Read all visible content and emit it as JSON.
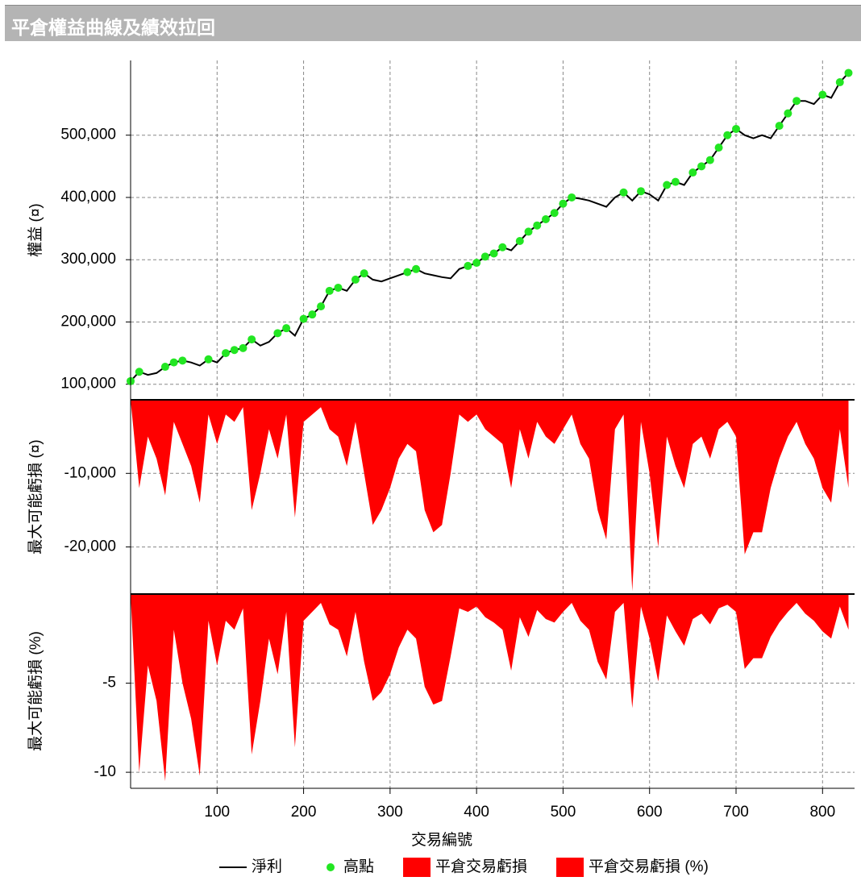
{
  "chart_data": {
    "title": "平倉權益曲線及績效拉回",
    "xlabel": "交易編號",
    "x": [
      0,
      10,
      20,
      30,
      40,
      50,
      60,
      70,
      80,
      90,
      100,
      110,
      120,
      130,
      140,
      150,
      160,
      170,
      180,
      190,
      200,
      210,
      220,
      230,
      240,
      250,
      260,
      270,
      280,
      290,
      300,
      310,
      320,
      330,
      340,
      350,
      360,
      370,
      380,
      390,
      400,
      410,
      420,
      430,
      440,
      450,
      460,
      470,
      480,
      490,
      500,
      510,
      520,
      530,
      540,
      550,
      560,
      570,
      580,
      590,
      600,
      610,
      620,
      630,
      640,
      650,
      660,
      670,
      680,
      690,
      700,
      710,
      720,
      730,
      740,
      750,
      760,
      770,
      780,
      790,
      800,
      810,
      820,
      830
    ],
    "xlim": [
      0,
      837
    ],
    "xticks": [
      100,
      200,
      300,
      400,
      500,
      600,
      700,
      800
    ],
    "panels": [
      {
        "type": "line",
        "ylabel": "權益 (¤)",
        "ylim": [
          75000,
          620000
        ],
        "yticks": [
          {
            "value": 100000,
            "label": "100,000"
          },
          {
            "value": 200000,
            "label": "200,000"
          },
          {
            "value": 300000,
            "label": "300,000"
          },
          {
            "value": 400000,
            "label": "400,000"
          },
          {
            "value": 500000,
            "label": "500,000"
          }
        ],
        "series": [
          {
            "name": "淨利",
            "type": "line",
            "color": "#000000",
            "values": [
              105000,
              120000,
              115000,
              118000,
              128000,
              135000,
              138000,
              135000,
              130000,
              140000,
              135000,
              150000,
              155000,
              158000,
              172000,
              162000,
              168000,
              182000,
              190000,
              178000,
              205000,
              212000,
              225000,
              250000,
              255000,
              250000,
              268000,
              278000,
              268000,
              265000,
              270000,
              275000,
              280000,
              285000,
              278000,
              275000,
              272000,
              270000,
              285000,
              290000,
              295000,
              305000,
              310000,
              320000,
              315000,
              330000,
              345000,
              355000,
              365000,
              375000,
              390000,
              400000,
              398000,
              395000,
              390000,
              385000,
              400000,
              408000,
              395000,
              410000,
              405000,
              395000,
              420000,
              425000,
              420000,
              440000,
              450000,
              460000,
              480000,
              500000,
              510000,
              500000,
              495000,
              500000,
              495000,
              515000,
              535000,
              555000,
              555000,
              550000,
              565000,
              560000,
              585000,
              600000
            ]
          },
          {
            "name": "高點",
            "type": "scatter",
            "color": "#22e622",
            "values": [
              105000,
              120000,
              null,
              null,
              128000,
              135000,
              138000,
              null,
              null,
              140000,
              null,
              150000,
              155000,
              158000,
              172000,
              null,
              null,
              182000,
              190000,
              null,
              205000,
              212000,
              225000,
              250000,
              255000,
              null,
              268000,
              278000,
              null,
              null,
              null,
              null,
              280000,
              285000,
              null,
              null,
              null,
              null,
              null,
              290000,
              295000,
              305000,
              310000,
              320000,
              null,
              330000,
              345000,
              355000,
              365000,
              375000,
              390000,
              400000,
              null,
              null,
              null,
              null,
              null,
              408000,
              null,
              410000,
              null,
              null,
              420000,
              425000,
              null,
              440000,
              450000,
              460000,
              480000,
              500000,
              510000,
              null,
              null,
              null,
              null,
              515000,
              535000,
              555000,
              null,
              null,
              565000,
              null,
              585000,
              600000
            ]
          }
        ]
      },
      {
        "type": "area",
        "ylabel": "最大可能虧損 (¤)",
        "ylim": [
          -26400,
          0
        ],
        "yticks": [
          {
            "value": -10000,
            "label": "-10,000"
          },
          {
            "value": -20000,
            "label": "-20,000"
          }
        ],
        "series": [
          {
            "name": "平倉交易虧損",
            "color": "#ff0000",
            "values": [
              0,
              -12000,
              -5000,
              -8000,
              -13000,
              -3000,
              -6000,
              -9000,
              -14000,
              -2000,
              -6000,
              -2000,
              -3000,
              -1000,
              -15000,
              -10000,
              -4000,
              -8000,
              -2000,
              -16000,
              -3000,
              -2000,
              -1000,
              -4000,
              -5000,
              -9000,
              -3000,
              -10000,
              -17000,
              -15000,
              -12000,
              -8000,
              -6000,
              -7000,
              -15000,
              -18000,
              -17000,
              -10000,
              -2000,
              -3000,
              -2000,
              -4000,
              -5000,
              -6000,
              -12000,
              -4000,
              -8000,
              -3000,
              -5000,
              -6000,
              -4000,
              -2000,
              -6000,
              -8000,
              -15000,
              -19000,
              -4000,
              -2000,
              -26000,
              -3000,
              -10000,
              -20000,
              -5000,
              -9000,
              -12000,
              -6000,
              -5000,
              -8000,
              -4000,
              -3000,
              -5000,
              -21000,
              -18000,
              -18000,
              -12000,
              -8000,
              -5000,
              -3000,
              -6000,
              -8000,
              -12000,
              -14000,
              -4000,
              -12000
            ]
          }
        ]
      },
      {
        "type": "area",
        "ylabel": "最大可能虧損 (%)",
        "ylim": [
          -10.9,
          0
        ],
        "yticks": [
          -5,
          -10
        ],
        "series": [
          {
            "name": "平倉交易虧損 (%)",
            "color": "#ff0000",
            "values": [
              0,
              -10,
              -4,
              -6,
              -10.5,
              -2,
              -5,
              -7,
              -10.2,
              -1.5,
              -4,
              -1.5,
              -2,
              -0.8,
              -9,
              -6,
              -2.5,
              -4.5,
              -1,
              -8.6,
              -1.5,
              -1,
              -0.5,
              -1.7,
              -2,
              -3.5,
              -1,
              -3.8,
              -6,
              -5.5,
              -4.5,
              -3,
              -2,
              -2.5,
              -5.2,
              -6.2,
              -6,
              -3.5,
              -0.8,
              -1,
              -0.7,
              -1.3,
              -1.6,
              -2,
              -4.3,
              -1.3,
              -2.4,
              -0.9,
              -1.4,
              -1.6,
              -1,
              -0.5,
              -1.5,
              -2,
              -3.8,
              -4.8,
              -1,
              -0.5,
              -6.4,
              -0.7,
              -2.5,
              -4.9,
              -1.2,
              -2.1,
              -2.9,
              -1.4,
              -1.1,
              -1.7,
              -0.8,
              -0.6,
              -1,
              -4.2,
              -3.6,
              -3.6,
              -2.4,
              -1.6,
              -1,
              -0.5,
              -1.1,
              -1.5,
              -2.1,
              -2.5,
              -0.7,
              -2
            ]
          }
        ]
      }
    ]
  }
}
